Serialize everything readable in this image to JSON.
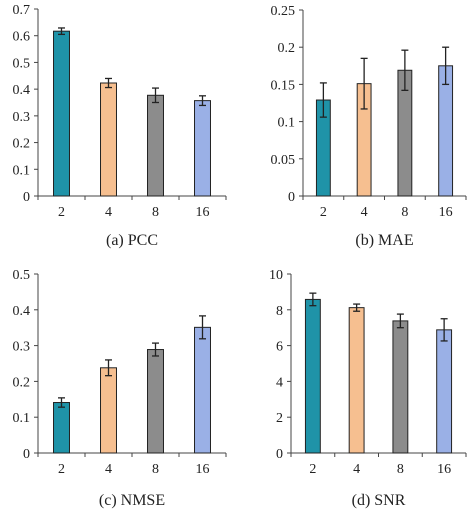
{
  "colors": {
    "axis": "#444444",
    "errorbar": "#222222",
    "bar_edge": "#222222",
    "bar_fills": [
      "#1f93a8",
      "#f6bf90",
      "#8c8c8c",
      "#9ab0e6"
    ]
  },
  "chart_data": [
    {
      "type": "bar",
      "caption": "(a)  PCC",
      "categories": [
        "2",
        "4",
        "8",
        "16"
      ],
      "values": [
        0.617,
        0.423,
        0.377,
        0.357
      ],
      "errors": [
        0.012,
        0.017,
        0.027,
        0.018
      ],
      "ylim": [
        0,
        0.7
      ],
      "yticks": [
        0,
        0.1,
        0.2,
        0.3,
        0.4,
        0.5,
        0.6,
        0.7
      ],
      "ytick_labels": [
        "0",
        "0.1",
        "0.2",
        "0.3",
        "0.4",
        "0.5",
        "0.6",
        "0.7"
      ],
      "grid": false
    },
    {
      "type": "bar",
      "caption": "(b)  MAE",
      "categories": [
        "2",
        "4",
        "8",
        "16"
      ],
      "values": [
        0.129,
        0.151,
        0.169,
        0.175
      ],
      "errors": [
        0.023,
        0.034,
        0.027,
        0.025
      ],
      "ylim": [
        0,
        0.25
      ],
      "yticks": [
        0,
        0.05,
        0.1,
        0.15,
        0.2,
        0.25
      ],
      "ytick_labels": [
        "0",
        "0.05",
        "0.1",
        "0.15",
        "0.2",
        "0.25"
      ],
      "grid": false
    },
    {
      "type": "bar",
      "caption": "(c)  NMSE",
      "categories": [
        "2",
        "4",
        "8",
        "16"
      ],
      "values": [
        0.141,
        0.238,
        0.289,
        0.351
      ],
      "errors": [
        0.013,
        0.022,
        0.018,
        0.032
      ],
      "ylim": [
        0,
        0.5
      ],
      "yticks": [
        0,
        0.1,
        0.2,
        0.3,
        0.4,
        0.5
      ],
      "ytick_labels": [
        "0",
        "0.1",
        "0.2",
        "0.3",
        "0.4",
        "0.5"
      ],
      "grid": false
    },
    {
      "type": "bar",
      "caption": "(d)  SNR",
      "categories": [
        "2",
        "4",
        "8",
        "16"
      ],
      "values": [
        8.58,
        8.12,
        7.38,
        6.88
      ],
      "errors": [
        0.35,
        0.2,
        0.38,
        0.62
      ],
      "ylim": [
        0,
        10
      ],
      "yticks": [
        0,
        2,
        4,
        6,
        8,
        10
      ],
      "ytick_labels": [
        "0",
        "2",
        "4",
        "6",
        "8",
        "10"
      ],
      "grid": false
    }
  ]
}
